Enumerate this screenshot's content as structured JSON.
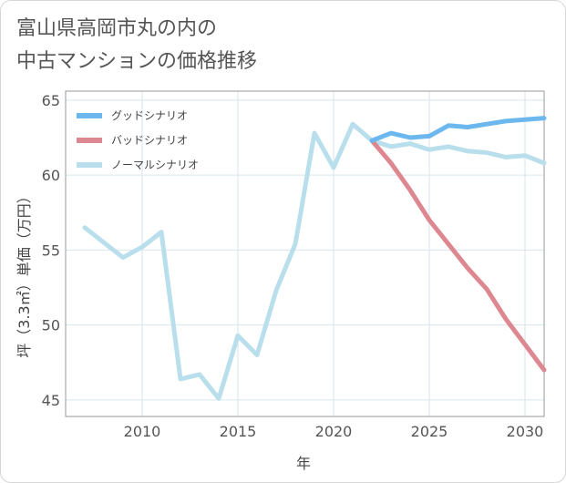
{
  "page": {
    "title_line1": "富山県高岡市丸の内の",
    "title_line2": "中古マンションの価格推移"
  },
  "colors": {
    "good": "#6cb8ee",
    "bad": "#dd8891",
    "normal": "#b9dfec",
    "grid": "#d7e6ee",
    "plot_border": "#999999"
  },
  "chart_data": {
    "type": "line",
    "title": "富山県高岡市丸の内の 中古マンションの価格推移",
    "xlabel": "年",
    "ylabel": "坪（3.3㎡）単価（万円）",
    "xlim": [
      2006,
      2031
    ],
    "ylim": [
      43.9,
      65.6
    ],
    "xticks": [
      2010,
      2015,
      2020,
      2025,
      2030
    ],
    "yticks": [
      45,
      50,
      55,
      60,
      65
    ],
    "xtick_labels": [
      "2010",
      "2015",
      "2020",
      "2025",
      "2030"
    ],
    "ytick_labels": [
      "45",
      "50",
      "55",
      "60",
      "65"
    ],
    "grid": true,
    "legend_position": "top-left",
    "series": [
      {
        "name": "グッドシナリオ",
        "color": "#6cb8ee",
        "x": [
          2022,
          2023,
          2024,
          2025,
          2026,
          2027,
          2028,
          2029,
          2030,
          2031
        ],
        "y": [
          62.3,
          62.8,
          62.5,
          62.6,
          63.3,
          63.2,
          63.4,
          63.6,
          63.7,
          63.8
        ]
      },
      {
        "name": "バッドシナリオ",
        "color": "#dd8891",
        "x": [
          2022,
          2023,
          2024,
          2025,
          2026,
          2027,
          2028,
          2029,
          2030,
          2031
        ],
        "y": [
          62.3,
          60.8,
          59.0,
          57.0,
          55.4,
          53.8,
          52.4,
          50.4,
          48.7,
          47.0
        ]
      },
      {
        "name": "ノーマルシナリオ",
        "color": "#b9dfec",
        "x": [
          2007,
          2008,
          2009,
          2010,
          2011,
          2012,
          2013,
          2014,
          2015,
          2016,
          2017,
          2018,
          2019,
          2020,
          2021,
          2022,
          2023,
          2024,
          2025,
          2026,
          2027,
          2028,
          2029,
          2030,
          2031
        ],
        "y": [
          56.5,
          55.5,
          54.5,
          55.2,
          56.2,
          46.4,
          46.7,
          45.1,
          49.3,
          48.0,
          52.3,
          55.4,
          62.8,
          60.5,
          63.4,
          62.3,
          61.9,
          62.1,
          61.7,
          61.9,
          61.6,
          61.5,
          61.2,
          61.3,
          60.8
        ]
      }
    ]
  }
}
